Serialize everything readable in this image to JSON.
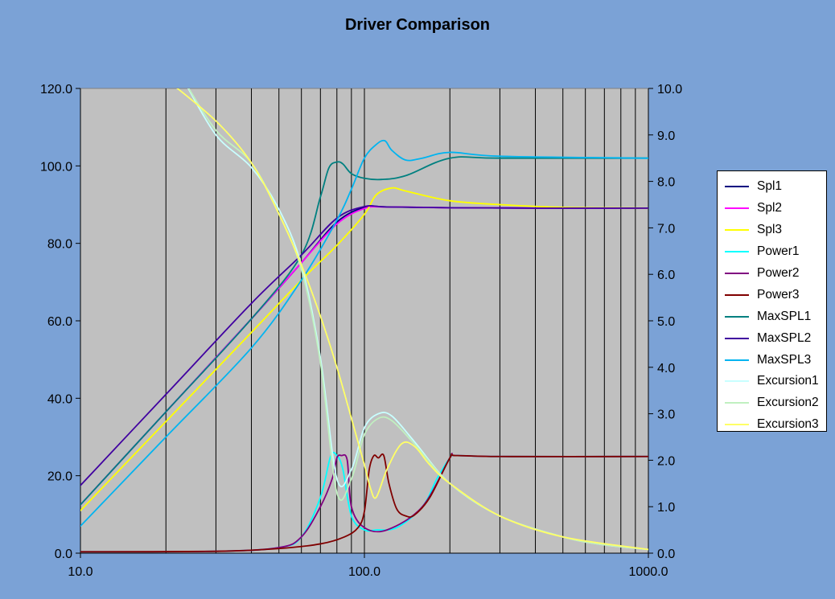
{
  "chart_data": {
    "type": "line",
    "title": "Driver Comparison",
    "xscale": "log",
    "xlim": [
      10,
      1000
    ],
    "ylim_left": [
      0,
      120
    ],
    "ylim_right": [
      0,
      10
    ],
    "x_ticks": [
      "10.0",
      "100.0",
      "1000.0"
    ],
    "y_left_ticks": [
      "0.0",
      "20.0",
      "40.0",
      "60.0",
      "80.0",
      "100.0",
      "120.0"
    ],
    "y_right_ticks": [
      "0.0",
      "1.0",
      "2.0",
      "3.0",
      "4.0",
      "5.0",
      "6.0",
      "7.0",
      "8.0",
      "9.0",
      "10.0"
    ],
    "grid": "vertical",
    "legend_position": "right",
    "background": "#7BA2D6",
    "plot_background": "#C0C0C0",
    "series": [
      {
        "name": "Spl1",
        "axis": "left",
        "color": "#000080",
        "x": [
          10,
          20,
          40,
          60,
          80,
          100,
          120,
          200,
          400,
          1000
        ],
        "y": [
          12.5,
          36.5,
          60.5,
          75,
          85.5,
          89.3,
          89.4,
          89.2,
          89.1,
          89.1
        ]
      },
      {
        "name": "Spl2",
        "axis": "left",
        "color": "#FF00FF",
        "x": [
          10,
          20,
          40,
          60,
          80,
          100,
          120,
          200,
          400,
          1000
        ],
        "y": [
          12.5,
          36.5,
          60.5,
          75,
          85,
          89,
          89.4,
          89.2,
          89.1,
          89.1
        ]
      },
      {
        "name": "Spl3",
        "axis": "left",
        "color": "#FFFF00",
        "x": [
          10,
          20,
          40,
          60,
          80,
          100,
          110,
          125,
          140,
          200,
          300,
          500,
          1000
        ],
        "y": [
          11,
          34,
          57,
          70.5,
          79.5,
          87.5,
          92.5,
          94.3,
          93.5,
          91,
          90,
          89.3,
          89.1
        ]
      },
      {
        "name": "Power1",
        "axis": "right",
        "color": "#00FFFF",
        "x": [
          10,
          30,
          50,
          60,
          70,
          76,
          80,
          84,
          90,
          100,
          110,
          130,
          160,
          180,
          200,
          210,
          300,
          1000
        ],
        "y": [
          0.03,
          0.04,
          0.12,
          0.35,
          1.2,
          2.08,
          2.1,
          1.8,
          0.8,
          0.5,
          0.5,
          0.55,
          1.0,
          1.6,
          2.05,
          2.1,
          2.08,
          2.08
        ]
      },
      {
        "name": "Power2",
        "axis": "right",
        "color": "#800080",
        "x": [
          10,
          30,
          50,
          60,
          70,
          77,
          80,
          83,
          87,
          90,
          100,
          120,
          160,
          200,
          210,
          300,
          1000
        ],
        "y": [
          0.03,
          0.04,
          0.12,
          0.35,
          1.0,
          1.6,
          2.05,
          2.1,
          2.0,
          1.0,
          0.55,
          0.5,
          1.0,
          2.05,
          2.1,
          2.08,
          2.08
        ]
      },
      {
        "name": "Power3",
        "axis": "right",
        "color": "#800000",
        "x": [
          10,
          30,
          50,
          70,
          85,
          95,
          100,
          104,
          108,
          112,
          117,
          122,
          130,
          140,
          150,
          170,
          200,
          210,
          300,
          1000
        ],
        "y": [
          0.03,
          0.04,
          0.1,
          0.2,
          0.35,
          0.55,
          0.9,
          1.8,
          2.1,
          2.05,
          2.1,
          1.5,
          0.95,
          0.8,
          0.82,
          1.2,
          2.05,
          2.1,
          2.08,
          2.08
        ]
      },
      {
        "name": "MaxSPL1",
        "axis": "left",
        "color": "#008080",
        "x": [
          10,
          20,
          40,
          60,
          70,
          75,
          80,
          84,
          90,
          100,
          115,
          140,
          200,
          300,
          1000
        ],
        "y": [
          12.5,
          36.5,
          60.5,
          77,
          92,
          99.5,
          101,
          100.5,
          98,
          96.8,
          96.5,
          97.5,
          102,
          102,
          102
        ]
      },
      {
        "name": "MaxSPL2",
        "axis": "left",
        "color": "#4000A0",
        "x": [
          10,
          20,
          40,
          60,
          80,
          100,
          120,
          200,
          400,
          1000
        ],
        "y": [
          17.5,
          41,
          64.5,
          77,
          86.5,
          89.5,
          89.4,
          89.2,
          89.1,
          89.1
        ]
      },
      {
        "name": "MaxSPL3",
        "axis": "left",
        "color": "#00B4F0",
        "x": [
          10,
          20,
          40,
          60,
          80,
          90,
          100,
          110,
          118,
          125,
          140,
          160,
          200,
          300,
          1000
        ],
        "y": [
          7,
          30,
          53,
          70.5,
          86,
          94,
          102,
          105.5,
          106.5,
          104,
          101.5,
          102,
          103.5,
          102.5,
          102
        ]
      },
      {
        "name": "Excursion1",
        "axis": "right",
        "color": "#C8FFFF",
        "x": [
          23,
          30,
          40,
          50,
          60,
          70,
          80,
          90,
          100,
          112,
          125,
          150,
          200,
          300,
          500,
          700,
          1000
        ],
        "y": [
          10.2,
          9.0,
          8.3,
          7.4,
          6.2,
          4.2,
          1.6,
          1.8,
          2.7,
          3.0,
          2.95,
          2.4,
          1.5,
          0.8,
          0.35,
          0.18,
          0.08
        ]
      },
      {
        "name": "Excursion2",
        "axis": "right",
        "color": "#C0F0C0",
        "x": [
          23,
          30,
          40,
          50,
          60,
          70,
          80,
          90,
          100,
          112,
          125,
          150,
          200,
          300,
          500,
          700,
          1000
        ],
        "y": [
          10.2,
          9.1,
          8.4,
          7.3,
          6.1,
          4.1,
          1.3,
          1.6,
          2.55,
          2.9,
          2.85,
          2.35,
          1.5,
          0.8,
          0.35,
          0.18,
          0.08
        ]
      },
      {
        "name": "Excursion3",
        "axis": "right",
        "color": "#FFFF66",
        "x": [
          20,
          30,
          40,
          50,
          60,
          70,
          80,
          90,
          100,
          105,
          110,
          120,
          135,
          150,
          170,
          200,
          300,
          500,
          1000
        ],
        "y": [
          10.2,
          9.3,
          8.4,
          7.3,
          6.2,
          5.1,
          4.0,
          2.9,
          1.9,
          1.4,
          1.2,
          1.8,
          2.35,
          2.3,
          1.9,
          1.5,
          0.8,
          0.35,
          0.08
        ]
      }
    ]
  }
}
